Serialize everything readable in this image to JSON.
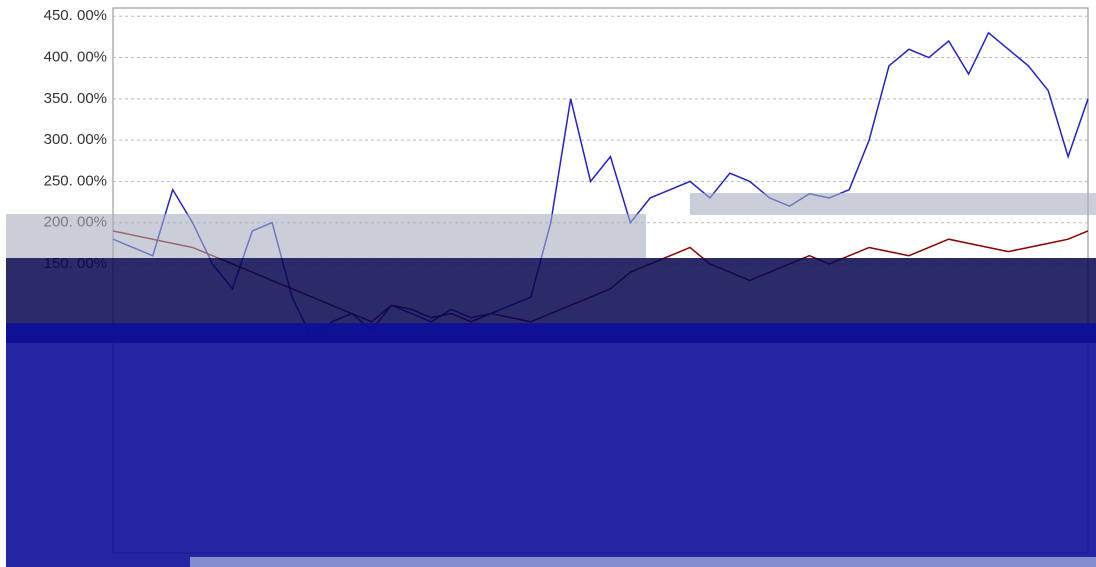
{
  "chart_data": {
    "type": "line",
    "ylim": [
      -200,
      460
    ],
    "yticks": [
      {
        "value": 450,
        "label": "450. 00%"
      },
      {
        "value": 400,
        "label": "400. 00%"
      },
      {
        "value": 350,
        "label": "350. 00%"
      },
      {
        "value": 300,
        "label": "300. 00%"
      },
      {
        "value": 250,
        "label": "250. 00%"
      },
      {
        "value": 200,
        "label": "200. 00%"
      },
      {
        "value": 150,
        "label": "150. 00%"
      }
    ],
    "grid": true,
    "series": [
      {
        "color": "#2323c8",
        "values": [
          180,
          170,
          160,
          240,
          200,
          150,
          120,
          190,
          200,
          110,
          60,
          80,
          90,
          70,
          100,
          90,
          80,
          95,
          85,
          90,
          100,
          110,
          200,
          350,
          250,
          280,
          200,
          230,
          240,
          250,
          230,
          260,
          250,
          230,
          220,
          235,
          230,
          240,
          300,
          390,
          410,
          400,
          420,
          380,
          430,
          410,
          390,
          360,
          280,
          350
        ]
      },
      {
        "color": "#8b0000",
        "values": [
          190,
          185,
          180,
          175,
          170,
          160,
          150,
          140,
          130,
          120,
          110,
          100,
          90,
          80,
          100,
          95,
          85,
          90,
          80,
          90,
          85,
          80,
          90,
          100,
          110,
          120,
          140,
          150,
          160,
          170,
          150,
          140,
          130,
          140,
          150,
          160,
          150,
          160,
          170,
          165,
          160,
          170,
          180,
          175,
          170,
          165,
          170,
          175,
          180,
          190
        ]
      }
    ]
  }
}
